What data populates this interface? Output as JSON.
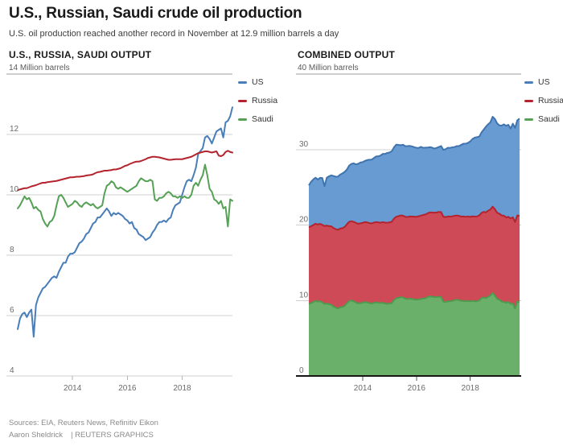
{
  "header": {
    "title": "U.S., Russian, Saudi crude oil production",
    "subtitle": "U.S. oil production reached another record in November at 12.9 million barrels a day"
  },
  "footer": {
    "sources": "Sources: EIA, Reuters News, Refinitiv Eikon",
    "byline": "Aaron Sheldrick",
    "credit": "| REUTERS GRAPHICS"
  },
  "colors": {
    "grid": "#d0d0d0",
    "grid_top": "#9c9c9c",
    "axis_black": "#161616",
    "tick": "#b3b3b3",
    "tick_label": "#6b6b6b"
  },
  "chart_data": {
    "x_unit": "month",
    "x_start": "2012-01",
    "x_end": "2019-11",
    "series": [
      {
        "name": "US",
        "line_color": "#4a7eb8",
        "fill_color": "#689bd2",
        "edge_color": "#3f74ae",
        "values": [
          5.55,
          5.9,
          6.05,
          6.1,
          5.95,
          6.1,
          6.2,
          5.3,
          6.35,
          6.6,
          6.75,
          6.9,
          6.95,
          7.05,
          7.15,
          7.25,
          7.3,
          7.25,
          7.45,
          7.6,
          7.75,
          7.75,
          7.95,
          8.05,
          8.05,
          8.1,
          8.25,
          8.4,
          8.45,
          8.55,
          8.7,
          8.75,
          8.9,
          9.05,
          9.1,
          9.25,
          9.25,
          9.35,
          9.45,
          9.55,
          9.45,
          9.3,
          9.4,
          9.35,
          9.4,
          9.35,
          9.3,
          9.2,
          9.15,
          9.05,
          9.1,
          8.9,
          8.85,
          8.7,
          8.65,
          8.6,
          8.5,
          8.55,
          8.6,
          8.75,
          8.85,
          9.0,
          9.1,
          9.1,
          9.15,
          9.1,
          9.2,
          9.25,
          9.5,
          9.65,
          9.7,
          9.75,
          10.0,
          10.25,
          10.45,
          10.5,
          10.45,
          10.65,
          10.9,
          11.35,
          11.45,
          11.55,
          11.9,
          11.95,
          11.85,
          11.7,
          11.9,
          12.1,
          12.15,
          12.2,
          11.9,
          12.4,
          12.45,
          12.6,
          12.9
        ]
      },
      {
        "name": "Russia",
        "line_color": "#b3242e",
        "fill_color": "#cf4a57",
        "edge_color": "#b3242e",
        "values": [
          10.15,
          10.18,
          10.2,
          10.22,
          10.22,
          10.25,
          10.28,
          10.3,
          10.32,
          10.35,
          10.38,
          10.4,
          10.4,
          10.42,
          10.43,
          10.44,
          10.45,
          10.46,
          10.48,
          10.5,
          10.52,
          10.54,
          10.56,
          10.58,
          10.58,
          10.59,
          10.6,
          10.6,
          10.61,
          10.62,
          10.64,
          10.65,
          10.66,
          10.68,
          10.72,
          10.75,
          10.76,
          10.78,
          10.8,
          10.8,
          10.81,
          10.82,
          10.84,
          10.84,
          10.86,
          10.88,
          10.92,
          10.96,
          10.98,
          11.02,
          11.05,
          11.08,
          11.1,
          11.1,
          11.12,
          11.15,
          11.18,
          11.22,
          11.24,
          11.26,
          11.26,
          11.25,
          11.24,
          11.22,
          11.2,
          11.18,
          11.16,
          11.16,
          11.17,
          11.18,
          11.18,
          11.18,
          11.18,
          11.2,
          11.22,
          11.24,
          11.26,
          11.3,
          11.34,
          11.38,
          11.4,
          11.42,
          11.44,
          11.44,
          11.42,
          11.4,
          11.42,
          11.44,
          11.3,
          11.28,
          11.32,
          11.42,
          11.46,
          11.42,
          11.4
        ]
      },
      {
        "name": "Saudi",
        "line_color": "#57a157",
        "fill_color": "#6ab06a",
        "edge_color": "#4f9a4f",
        "values": [
          9.55,
          9.65,
          9.8,
          9.95,
          9.85,
          9.9,
          9.75,
          9.55,
          9.6,
          9.5,
          9.45,
          9.2,
          9.05,
          8.95,
          9.1,
          9.15,
          9.3,
          9.65,
          9.95,
          10.0,
          9.9,
          9.75,
          9.6,
          9.65,
          9.7,
          9.8,
          9.75,
          9.65,
          9.6,
          9.7,
          9.75,
          9.7,
          9.65,
          9.7,
          9.6,
          9.55,
          9.6,
          9.65,
          10.05,
          10.3,
          10.35,
          10.45,
          10.4,
          10.25,
          10.2,
          10.25,
          10.2,
          10.15,
          10.1,
          10.15,
          10.2,
          10.25,
          10.3,
          10.45,
          10.55,
          10.5,
          10.45,
          10.45,
          10.5,
          10.45,
          9.85,
          9.8,
          9.9,
          9.9,
          9.95,
          10.05,
          10.1,
          10.05,
          9.95,
          9.95,
          9.9,
          9.95,
          9.9,
          9.95,
          9.9,
          9.9,
          10.0,
          10.3,
          10.4,
          10.3,
          10.5,
          10.65,
          11.0,
          10.65,
          10.2,
          10.1,
          9.85,
          9.8,
          9.7,
          9.8,
          9.55,
          9.6,
          8.95,
          9.85,
          9.8
        ]
      }
    ],
    "charts": [
      {
        "type": "line",
        "title": "U.S., RUSSIA, SAUDI OUTPUT",
        "unit_label": "14 Million barrels",
        "ylim": [
          4,
          14
        ],
        "ytop": 14,
        "yticks": [
          12,
          10,
          8,
          6,
          4
        ],
        "xticks": [
          2014,
          2016,
          2018
        ],
        "legend": [
          "US",
          "Russia",
          "Saudi"
        ],
        "legend_position": "right"
      },
      {
        "type": "stacked-area",
        "title": "COMBINED OUTPUT",
        "unit_label": "40 Million barrels",
        "ylim": [
          0,
          40
        ],
        "ytop": 40,
        "yticks": [
          30,
          20,
          10,
          0
        ],
        "xticks": [
          2014,
          2016,
          2018
        ],
        "legend": [
          "US",
          "Russia",
          "Saudi"
        ],
        "legend_position": "right",
        "stack_bottom_to_top": [
          "Saudi",
          "Russia",
          "US"
        ]
      }
    ]
  }
}
